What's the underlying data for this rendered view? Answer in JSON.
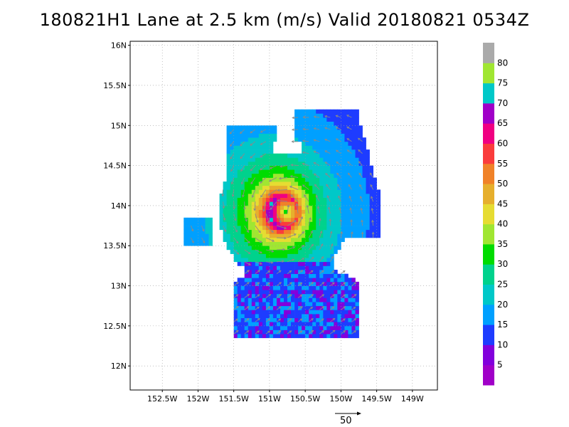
{
  "title": "180821H1 Lane at 2.5 km (m/s) Valid 20180821 0534Z",
  "y_ticks": [
    "16N",
    "15.5N",
    "15N",
    "14.5N",
    "14N",
    "13.5N",
    "13N",
    "12.5N",
    "12N"
  ],
  "x_ticks": [
    "152.5W",
    "152W",
    "151.5W",
    "151W",
    "150.5W",
    "150W",
    "149.5W",
    "149W"
  ],
  "colorbar": {
    "labels": [
      "5",
      "10",
      "15",
      "20",
      "25",
      "30",
      "35",
      "40",
      "45",
      "50",
      "55",
      "60",
      "65",
      "70",
      "75",
      "80"
    ],
    "colors": [
      "#a000c8",
      "#8200dc",
      "#1e3cff",
      "#00a0ff",
      "#00c8c8",
      "#00d28c",
      "#00dc00",
      "#a0e632",
      "#e6dc32",
      "#e6af2d",
      "#f08228",
      "#fa3c3c",
      "#f00082",
      "#a000c8",
      "#00c8c8",
      "#a0e632",
      "#aaaaaa"
    ]
  },
  "vector_reference": {
    "label": "50"
  },
  "chart_data": {
    "type": "heatmap",
    "title": "180821H1 Lane at 2.5 km (m/s) Valid 20180821 0534Z",
    "variable": "wind speed (m/s) at 2.5 km",
    "x_range_deg": [
      -152.95,
      -148.65
    ],
    "y_range_deg": [
      11.7,
      16.05
    ],
    "grid": true,
    "storm_center": {
      "lon": -150.8,
      "lat": 13.92
    },
    "radius_of_max_wind_deg": 0.2,
    "max_wind": 65,
    "reference_vector_speed": 50,
    "colorbar_levels": [
      5,
      10,
      15,
      20,
      25,
      30,
      35,
      40,
      45,
      50,
      55,
      60,
      65,
      70,
      75,
      80
    ]
  }
}
